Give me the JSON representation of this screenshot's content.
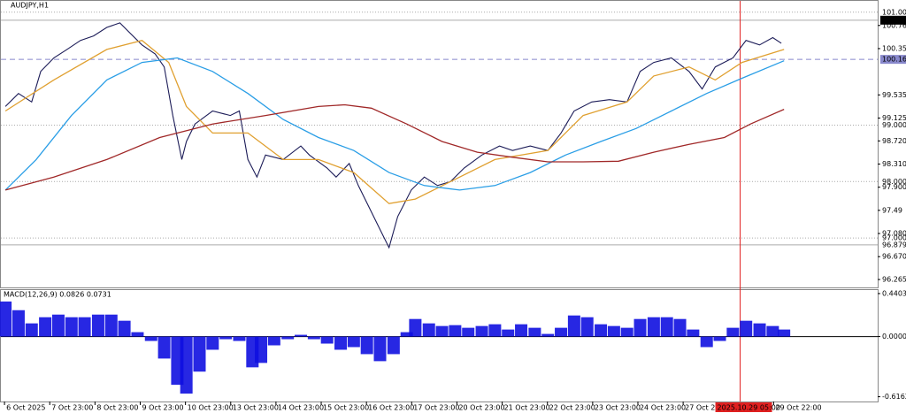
{
  "chart_data": [
    {
      "type": "line",
      "title": "AUDJPY,H1",
      "xlim": [
        -0.08,
        19.3
      ],
      "ylim": [
        96.125,
        101.2
      ],
      "xticks": [
        {
          "value": 0,
          "label": "6 Oct 2025"
        },
        {
          "value": 1,
          "label": "7 Oct 23:00"
        },
        {
          "value": 2,
          "label": "8 Oct 23:00"
        },
        {
          "value": 3,
          "label": "9 Oct 23:00"
        },
        {
          "value": 4,
          "label": "10 Oct 23:00"
        },
        {
          "value": 5,
          "label": "13 Oct 23:00"
        },
        {
          "value": 6,
          "label": "14 Oct 23:00"
        },
        {
          "value": 7,
          "label": "15 Oct 23:00"
        },
        {
          "value": 8,
          "label": "16 Oct 23:00"
        },
        {
          "value": 9,
          "label": "17 Oct 23:00"
        },
        {
          "value": 10,
          "label": "20 Oct 23:00"
        },
        {
          "value": 11,
          "label": "21 Oct 23:00"
        },
        {
          "value": 12,
          "label": "22 Oct 23:00"
        },
        {
          "value": 13,
          "label": "23 Oct 23:00"
        },
        {
          "value": 14,
          "label": "24 Oct 23:00"
        },
        {
          "value": 15,
          "label": "27 Oct 22:00"
        },
        {
          "value": 17,
          "label": "29 Oct 22:00"
        }
      ],
      "yticks": [
        100.765,
        100.355,
        99.535,
        99.125,
        {
          "value": 98.72,
          "label": "98.720"
        },
        {
          "value": 98.31,
          "label": "98.310"
        },
        {
          "value": 97.9,
          "label": "97.900"
        },
        97.49,
        {
          "value": 97.08,
          "label": "97.080"
        },
        {
          "value": 96.67,
          "label": "96.670"
        },
        96.265
      ],
      "levels": [
        {
          "value": 101,
          "label": "101.000",
          "style": "dotted"
        },
        {
          "value": 100.858,
          "label": "100.858",
          "style": "current"
        },
        {
          "value": 100.164,
          "label": "100.164",
          "style": "dashed"
        },
        {
          "value": 99,
          "label": "99.000",
          "style": "dotted"
        },
        {
          "value": 98,
          "label": "98.000",
          "style": "dotted"
        },
        {
          "value": 97,
          "label": "97.000",
          "style": "dotted"
        },
        {
          "value": 96.879,
          "label": "96.879",
          "style": "solid"
        }
      ],
      "cursor": {
        "x": 16.26,
        "label": "2025.10.29 05:00",
        "color": "#e02020"
      },
      "series": [
        {
          "name": "AUDJPY",
          "color": "#1c1c58",
          "x": [
            0.02,
            0.31,
            0.6,
            0.8,
            1.09,
            1.38,
            1.68,
            1.97,
            2.26,
            2.55,
            2.75,
            3.04,
            3.33,
            3.53,
            3.72,
            3.92,
            4.02,
            4.21,
            4.6,
            4.99,
            5.19,
            5.38,
            5.58,
            5.77,
            6.16,
            6.55,
            6.74,
            7.13,
            7.33,
            7.62,
            7.82,
            8.11,
            8.4,
            8.5,
            8.69,
            8.99,
            9.28,
            9.57,
            9.86,
            10.16,
            10.55,
            10.94,
            11.23,
            11.62,
            12.01,
            12.3,
            12.59,
            12.98,
            13.37,
            13.76,
            14.05,
            14.35,
            14.74,
            15.13,
            15.42,
            15.71,
            16.1,
            16.39,
            16.69,
            16.98,
            17.17
          ],
          "values": [
            99.33,
            99.56,
            99.41,
            99.95,
            100.19,
            100.34,
            100.5,
            100.58,
            100.73,
            100.81,
            100.65,
            100.42,
            100.26,
            100.03,
            99.17,
            98.39,
            98.71,
            99.02,
            99.25,
            99.17,
            99.25,
            98.39,
            98.08,
            98.47,
            98.39,
            98.63,
            98.47,
            98.24,
            98.08,
            98.32,
            97.93,
            97.46,
            96.99,
            96.83,
            97.38,
            97.85,
            98.08,
            97.93,
            98.0,
            98.24,
            98.47,
            98.63,
            98.55,
            98.63,
            98.55,
            98.86,
            99.25,
            99.41,
            99.45,
            99.41,
            99.95,
            100.11,
            100.19,
            99.95,
            99.64,
            100.03,
            100.19,
            100.5,
            100.42,
            100.55,
            100.45
          ]
        },
        {
          "name": "MA fast",
          "color": "#e0a030",
          "x": [
            0.02,
            1.09,
            2.26,
            3.04,
            3.63,
            4.02,
            4.6,
            5.38,
            6.16,
            6.94,
            7.72,
            8.5,
            9.08,
            9.86,
            10.84,
            12.01,
            12.79,
            13.76,
            14.35,
            15.13,
            15.71,
            16.3,
            17.23
          ],
          "values": [
            99.25,
            99.8,
            100.34,
            100.5,
            100.11,
            99.33,
            98.86,
            98.86,
            98.39,
            98.39,
            98.16,
            97.61,
            97.69,
            98.0,
            98.39,
            98.55,
            99.17,
            99.41,
            99.87,
            100.03,
            99.8,
            100.11,
            100.34
          ]
        },
        {
          "name": "MA mid",
          "color": "#2a9ee6",
          "x": [
            0.02,
            0.7,
            1.48,
            2.26,
            3.04,
            3.82,
            4.6,
            5.38,
            6.16,
            6.94,
            7.72,
            8.5,
            9.28,
            10.06,
            10.84,
            11.62,
            12.4,
            13.18,
            13.96,
            14.74,
            15.52,
            16.3,
            17.23
          ],
          "values": [
            97.85,
            98.39,
            99.17,
            99.8,
            100.11,
            100.19,
            99.95,
            99.56,
            99.1,
            98.78,
            98.55,
            98.16,
            97.93,
            97.85,
            97.93,
            98.16,
            98.47,
            98.71,
            98.94,
            99.25,
            99.56,
            99.83,
            100.14
          ]
        },
        {
          "name": "MA slow",
          "color": "#a02828",
          "x": [
            0.02,
            1.09,
            2.26,
            3.43,
            4.6,
            5.77,
            6.94,
            7.52,
            8.11,
            8.89,
            9.67,
            10.45,
            11.23,
            12.01,
            12.79,
            13.57,
            14.35,
            15.13,
            15.91,
            16.49,
            17.23
          ],
          "values": [
            97.85,
            98.08,
            98.39,
            98.78,
            99.02,
            99.17,
            99.33,
            99.36,
            99.3,
            99.02,
            98.71,
            98.52,
            98.43,
            98.35,
            98.35,
            98.36,
            98.52,
            98.66,
            98.78,
            99.02,
            99.28
          ]
        }
      ]
    },
    {
      "type": "bar",
      "title": "MACD(12,26,9) 0.0826 0.0731",
      "color": "#1010e0",
      "xlim": [
        -0.08,
        19.3
      ],
      "ylim": [
        -0.665,
        0.476
      ],
      "yticks": [
        0.4403,
        {
          "value": 0,
          "label": "0.0000"
        },
        -0.6162
      ],
      "x": [
        0.02,
        0.31,
        0.6,
        0.9,
        1.19,
        1.48,
        1.77,
        2.07,
        2.36,
        2.65,
        2.94,
        3.24,
        3.53,
        3.82,
        4.02,
        4.31,
        4.6,
        4.89,
        5.19,
        5.48,
        5.67,
        5.96,
        6.26,
        6.55,
        6.84,
        7.13,
        7.43,
        7.72,
        8.01,
        8.3,
        8.6,
        8.89,
        9.08,
        9.38,
        9.67,
        9.96,
        10.25,
        10.55,
        10.84,
        11.13,
        11.42,
        11.72,
        12.01,
        12.3,
        12.59,
        12.88,
        13.18,
        13.47,
        13.76,
        14.05,
        14.35,
        14.64,
        14.93,
        15.22,
        15.52,
        15.81,
        16.1,
        16.39,
        16.69,
        16.98,
        17.23
      ],
      "values": [
        0.359,
        0.27,
        0.135,
        0.198,
        0.225,
        0.198,
        0.198,
        0.225,
        0.225,
        0.162,
        0.045,
        -0.045,
        -0.225,
        -0.494,
        -0.584,
        -0.359,
        -0.135,
        -0.027,
        -0.045,
        -0.315,
        -0.27,
        -0.09,
        -0.027,
        0.018,
        -0.027,
        -0.072,
        -0.135,
        -0.108,
        -0.18,
        -0.252,
        -0.18,
        0.045,
        0.18,
        0.135,
        0.108,
        0.117,
        0.09,
        0.108,
        0.126,
        0.072,
        0.126,
        0.09,
        0.027,
        0.09,
        0.216,
        0.198,
        0.126,
        0.108,
        0.09,
        0.18,
        0.198,
        0.198,
        0.18,
        0.072,
        -0.108,
        -0.045,
        0.09,
        0.162,
        0.135,
        0.108,
        0.072
      ]
    }
  ]
}
